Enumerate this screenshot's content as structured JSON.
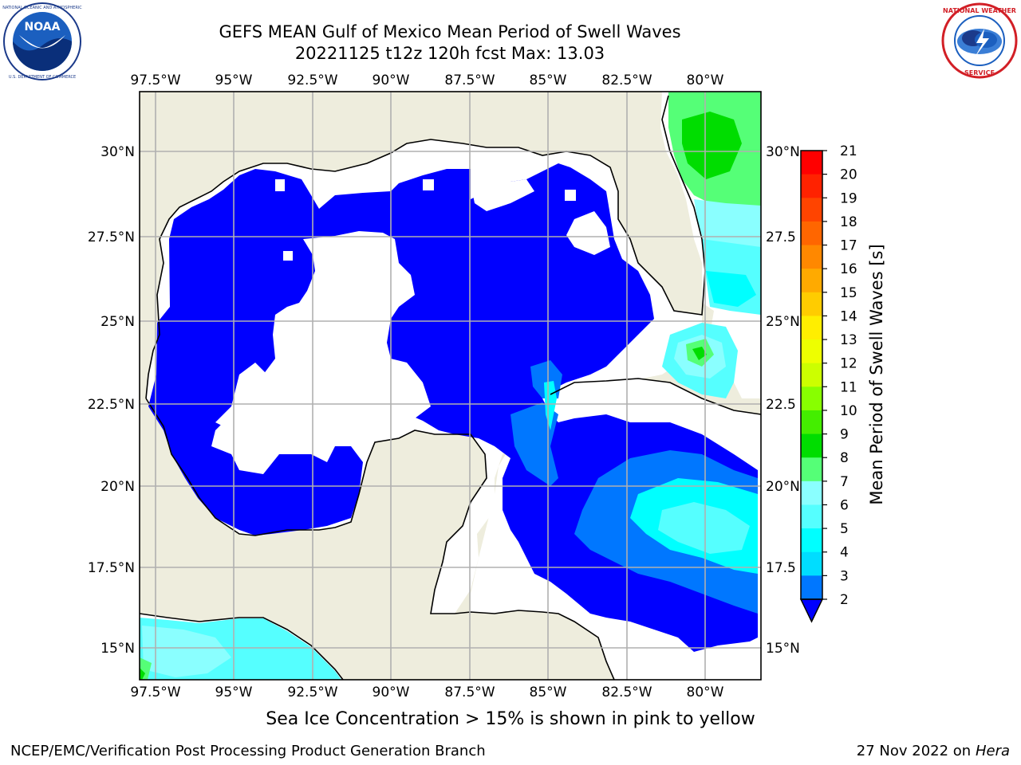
{
  "header": {
    "title_line1": "GEFS MEAN Gulf of Mexico Mean Period of Swell Waves",
    "title_line2": "20221125 t12z 120h fcst   Max: 13.03"
  },
  "logos": {
    "noaa": {
      "icon": "noaa-logo",
      "text": "NOAA",
      "ring_text": "NATIONAL OCEANIC AND ATMOSPHERIC ADMINISTRATION · U.S. DEPARTMENT OF COMMERCE"
    },
    "nws": {
      "icon": "nws-logo",
      "ring_text": "NATIONAL WEATHER SERVICE"
    }
  },
  "map": {
    "lon_labels": [
      "97.5°W",
      "95°W",
      "92.5°W",
      "90°W",
      "87.5°W",
      "85°W",
      "82.5°W",
      "80°W"
    ],
    "lat_labels_left": [
      "30°N",
      "27.5°N",
      "25°N",
      "22.5°N",
      "20°N",
      "17.5°N",
      "15°N"
    ],
    "lat_labels_right": [
      "30°N",
      "27.5",
      "25°N",
      "22.5",
      "20°N",
      "17.5",
      "15°N"
    ],
    "lon_range": [
      -98,
      -78.2
    ],
    "lat_range": [
      14,
      31.9
    ],
    "colors": {
      "land": "#eeeddd",
      "ocean_white": "#ffffff",
      "swell_2_4": "#0000ff",
      "swell_4_6": "#0077ff",
      "swell_6_8": "#00ffff",
      "swell_8_9": "#8affff",
      "swell_9_10": "#55ff77",
      "swell_10_11": "#00dd00"
    }
  },
  "colorbar": {
    "label": "Mean Period of Swell Waves [s]",
    "ticks": [
      "21",
      "20",
      "19",
      "18",
      "17",
      "16",
      "15",
      "14",
      "13",
      "12",
      "11",
      "10",
      "9",
      "8",
      "7",
      "6",
      "5",
      "4",
      "3",
      "2"
    ],
    "colors": [
      "#ff0000",
      "#ff2200",
      "#ff4400",
      "#ff6600",
      "#ff8800",
      "#ffaa00",
      "#ffcc00",
      "#ffee00",
      "#eeff00",
      "#ccff00",
      "#88ff00",
      "#44ee00",
      "#00dd00",
      "#55ff77",
      "#8affff",
      "#55ffff",
      "#00ffff",
      "#00ddff",
      "#0077ff",
      "#0000ff"
    ]
  },
  "footer": {
    "note": "Sea Ice Concentration > 15% is shown in pink to yellow",
    "credit": "NCEP/EMC/Verification Post Processing Product Generation Branch",
    "date": "27 Nov 2022 on",
    "host": "Hera"
  }
}
